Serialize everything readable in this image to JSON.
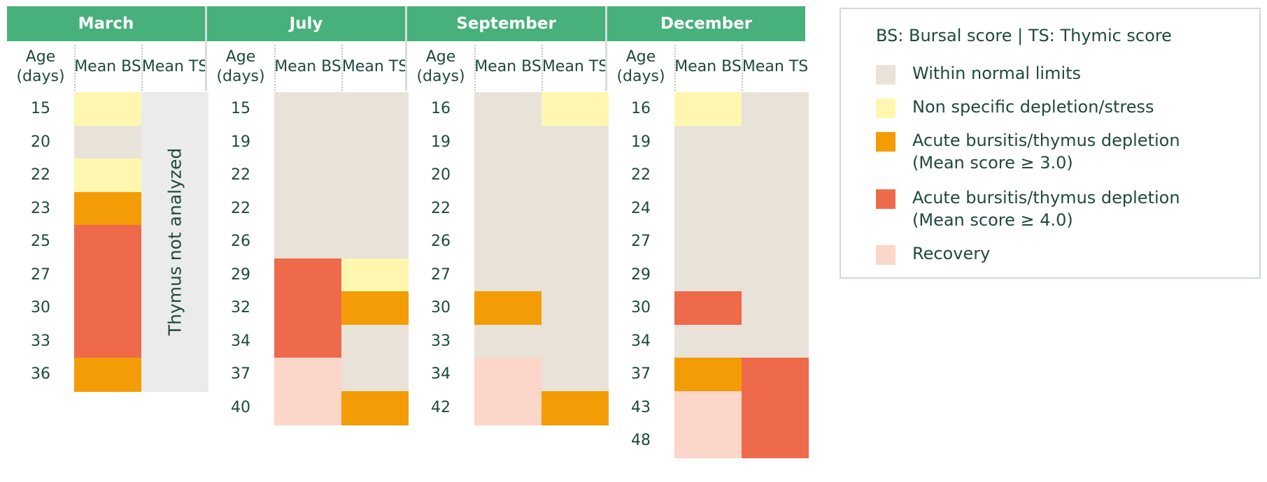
{
  "colors": {
    "normal": "#e8e2d8",
    "nonspecific": "#fff7b0",
    "acute3": "#f39c06",
    "acute4": "#ee6a4a",
    "recovery": "#fbd6c9",
    "na": "#ebebeb",
    "header": "#47b07b"
  },
  "chart_data": {
    "type": "table",
    "column_headers": [
      "Age (days)",
      "Mean BS",
      "Mean TS"
    ],
    "months": [
      {
        "name": "March",
        "ages": [
          "15",
          "20",
          "22",
          "23",
          "25",
          "27",
          "30",
          "33",
          "36"
        ],
        "bs": [
          "nonspecific",
          "normal",
          "nonspecific",
          "acute3",
          "acute4",
          "acute4",
          "acute4",
          "acute4",
          "acute3"
        ],
        "ts": [
          "na",
          "na",
          "na",
          "na",
          "na",
          "na",
          "na",
          "na",
          "na"
        ],
        "ts_note": "Thymus not analyzed"
      },
      {
        "name": "July",
        "ages": [
          "15",
          "19",
          "22",
          "22",
          "26",
          "29",
          "32",
          "34",
          "37",
          "40"
        ],
        "bs": [
          "normal",
          "normal",
          "normal",
          "normal",
          "normal",
          "acute4",
          "acute4",
          "acute4",
          "recovery",
          "recovery"
        ],
        "ts": [
          "normal",
          "normal",
          "normal",
          "normal",
          "normal",
          "nonspecific",
          "acute3",
          "normal",
          "normal",
          "acute3"
        ]
      },
      {
        "name": "September",
        "ages": [
          "16",
          "19",
          "20",
          "22",
          "26",
          "27",
          "30",
          "33",
          "34",
          "42"
        ],
        "bs": [
          "normal",
          "normal",
          "normal",
          "normal",
          "normal",
          "normal",
          "acute3",
          "normal",
          "recovery",
          "recovery"
        ],
        "ts": [
          "nonspecific",
          "normal",
          "normal",
          "normal",
          "normal",
          "normal",
          "normal",
          "normal",
          "normal",
          "acute3"
        ]
      },
      {
        "name": "December",
        "ages": [
          "16",
          "19",
          "22",
          "24",
          "27",
          "29",
          "30",
          "34",
          "37",
          "43",
          "48"
        ],
        "bs": [
          "nonspecific",
          "normal",
          "normal",
          "normal",
          "normal",
          "normal",
          "acute4",
          "normal",
          "acute3",
          "recovery",
          "recovery"
        ],
        "ts": [
          "normal",
          "normal",
          "normal",
          "normal",
          "normal",
          "normal",
          "normal",
          "normal",
          "acute4",
          "acute4",
          "acute4"
        ]
      }
    ],
    "legend": {
      "title": "BS: Bursal score | TS: Thymic score",
      "items": [
        {
          "key": "normal",
          "label": "Within normal limits"
        },
        {
          "key": "nonspecific",
          "label": "Non specific depletion/stress"
        },
        {
          "key": "acute3",
          "label": "Acute bursitis/thymus depletion",
          "label2": "(Mean score ≥ 3.0)"
        },
        {
          "key": "acute4",
          "label": "Acute bursitis/thymus depletion",
          "label2": "(Mean score ≥ 4.0)"
        },
        {
          "key": "recovery",
          "label": "Recovery"
        }
      ]
    }
  }
}
